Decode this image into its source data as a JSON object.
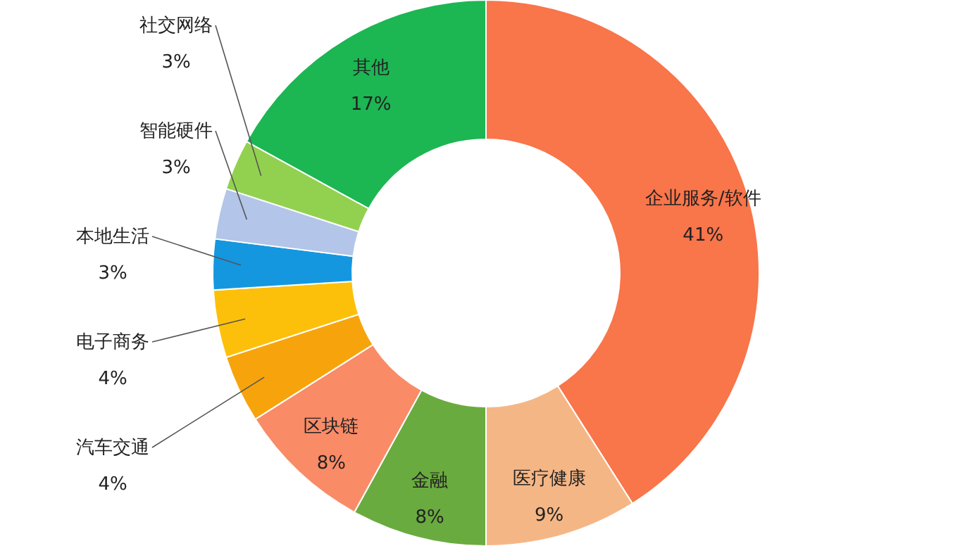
{
  "chart_data": {
    "type": "donut",
    "categories": [
      "企业服务/软件",
      "医疗健康",
      "金融",
      "区块链",
      "汽车交通",
      "电子商务",
      "本地生活",
      "智能硬件",
      "社交网络",
      "其他"
    ],
    "values": [
      41,
      9,
      8,
      8,
      4,
      4,
      3,
      3,
      3,
      17
    ],
    "value_labels": [
      "41%",
      "9%",
      "8%",
      "8%",
      "4%",
      "4%",
      "3%",
      "3%",
      "3%",
      "17%"
    ],
    "colors": [
      "#f9754a",
      "#f5b686",
      "#6aab3f",
      "#f98b67",
      "#f7a40c",
      "#fdc00a",
      "#1597e0",
      "#b3c5e8",
      "#92d14f",
      "#1cb652"
    ]
  }
}
